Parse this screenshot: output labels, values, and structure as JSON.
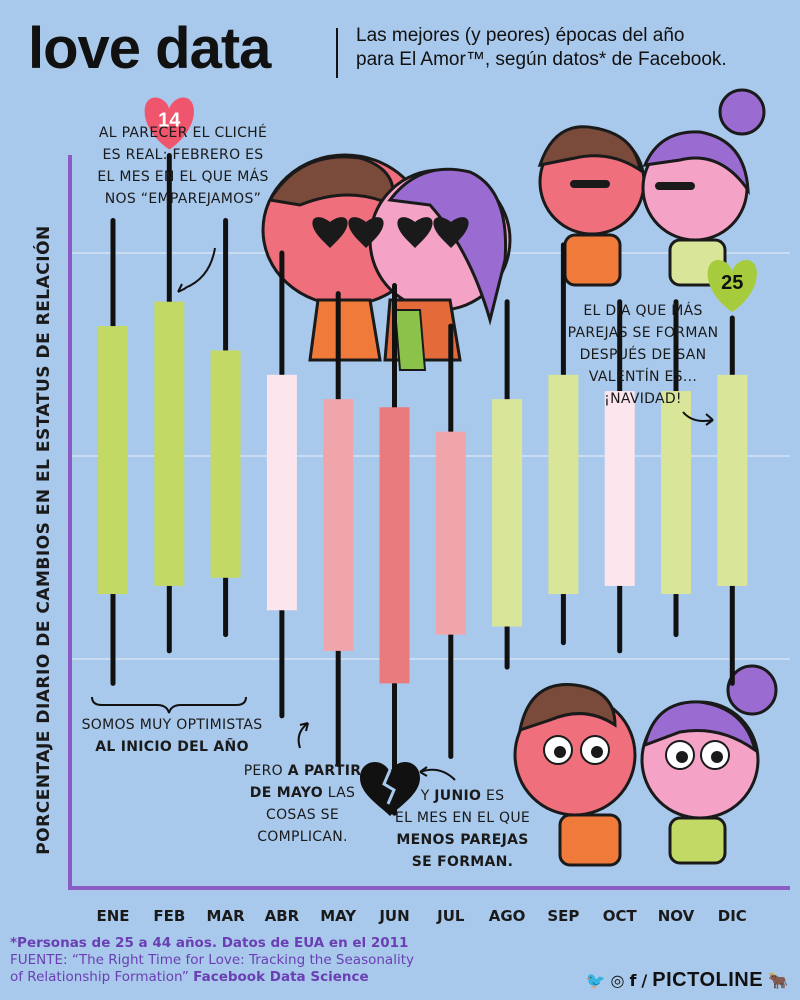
{
  "header": {
    "title": "love data",
    "subtitle_line1": "Las mejores (y peores) épocas del año",
    "subtitle_line2": "para El Amor™, según datos* de Facebook."
  },
  "chart_data": {
    "type": "bar",
    "subtype": "floating-range-with-whiskers",
    "ylabel": "PORCENTAJE DIARIO DE CAMBIOS EN EL ESTATUS DE RELACIÓN",
    "xlabel": "",
    "grid": true,
    "y_tick_labels": "none",
    "categories": [
      "ENE",
      "FEB",
      "MAR",
      "ABR",
      "MAY",
      "JUN",
      "JUL",
      "AGO",
      "SEP",
      "OCT",
      "NOV",
      "DIC"
    ],
    "whisker_high": [
      79,
      87,
      79,
      75,
      70,
      71,
      66,
      69,
      76,
      69,
      69,
      67
    ],
    "box_high": [
      66,
      69,
      63,
      60,
      57,
      56,
      53,
      57,
      60,
      58,
      58,
      60
    ],
    "box_low": [
      33,
      34,
      35,
      31,
      26,
      22,
      28,
      29,
      33,
      34,
      33,
      34
    ],
    "whisker_low": [
      22,
      26,
      28,
      18,
      12,
      6,
      13,
      24,
      27,
      26,
      28,
      22
    ],
    "box_colors": [
      "#c3d965",
      "#c3d965",
      "#c3d965",
      "#fde5ee",
      "#f0a5ab",
      "#e97a7e",
      "#f0a5ab",
      "#d9e69a",
      "#d9e69a",
      "#fde5ee",
      "#d9e69a",
      "#d9e69a"
    ],
    "ylim": [
      0,
      100
    ],
    "highlight": [
      {
        "category": "FEB",
        "label": "14",
        "color": "#f0556e"
      },
      {
        "category": "DIC",
        "label": "25",
        "color": "#a6cc3e"
      }
    ]
  },
  "annotations": {
    "feb": [
      "AL PARECER EL CLICHÉ",
      "ES REAL: FEBRERO ES",
      "EL MES EN EL QUE MÁS",
      "NOS “EMPAREJAMOS”"
    ],
    "dic": [
      "EL DÍA QUE MÁS",
      "PAREJAS SE FORMAN",
      "DESPUÉS DE SAN",
      "VALENTÍN ES...",
      "¡NAVIDAD!"
    ],
    "start_plain": "SOMOS MUY OPTIMISTAS",
    "start_bold": "AL INICIO DEL AÑO",
    "may_l1_plain": "PERO ",
    "may_l1_bold": "A PARTIR",
    "may_l2_bold": "DE MAYO",
    "may_l2_plain": " LAS",
    "may_l3": "COSAS SE",
    "may_l4": "COMPLICAN.",
    "jun_l1_plain": "Y ",
    "jun_l1_bold": "JUNIO",
    "jun_l1_plain2": " ES",
    "jun_l2": "EL MES EN EL QUE",
    "jun_l3_bold": "MENOS PAREJAS",
    "jun_l4_bold": "SE FORMAN."
  },
  "footer": {
    "footnote": "*Personas de 25 a 44 años. Datos de EUA en el 2011",
    "source_prefix": "FUENTE: “The Right Time for Love: Tracking the Seasonality",
    "source_line2": "of Relationship Formation”",
    "source_bold": "Facebook Data Science",
    "brand": "PICTOLINE",
    "social_icons": [
      "twitter-icon",
      "instagram-icon",
      "facebook-icon"
    ]
  },
  "colors": {
    "background": "#a9c9ec",
    "axis": "#8a5cc4",
    "whisker": "#111111",
    "grid": "#c9dcf2"
  }
}
